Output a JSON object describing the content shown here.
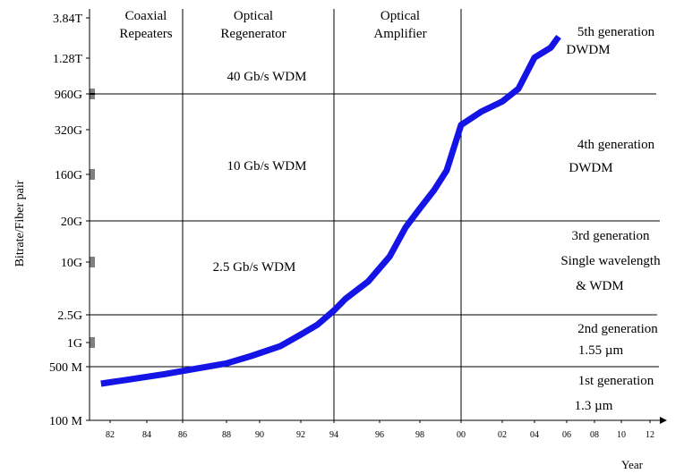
{
  "chart_data": {
    "type": "line",
    "title": "",
    "xlabel": "Year",
    "ylabel": "Bitrate/Fiber pair",
    "y_scale": "log",
    "x_ticks": [
      "82",
      "84",
      "86",
      "88",
      "90",
      "92",
      "94",
      "96",
      "98",
      "00",
      "02",
      "04",
      "06",
      "08",
      "10",
      "12"
    ],
    "y_ticks": [
      "3.84T",
      "1.28T",
      "960G",
      "320G",
      "160G",
      "20G",
      "10G",
      "2.5G",
      "1G",
      "500 M",
      "100 M"
    ],
    "eras": [
      "Coaxial\nRepeaters",
      "Optical\nRegenerator",
      "Optical\nAmplifier"
    ],
    "wdm_bands": [
      "40 Gb/s WDM",
      "10 Gb/s WDM",
      "2.5 Gb/s WDM"
    ],
    "generations": [
      "5th generation\nDWDM",
      "4th generation\nDWDM",
      "3rd generation\nSingle wavelength\n&  WDM",
      "2nd generation\n1.55 µm",
      "1st generation\n1.3 µm"
    ],
    "series": [
      {
        "color": "#1414e6",
        "points": [
          [
            "1981.5",
            "0.3G"
          ],
          [
            "1983",
            "0.34G"
          ],
          [
            "1985",
            "0.4G"
          ],
          [
            "1986",
            "0.44G"
          ],
          [
            "1988",
            "0.55G"
          ],
          [
            "1989.5",
            "0.68G"
          ],
          [
            "1991",
            "0.9G"
          ],
          [
            "1992",
            "1.3G"
          ],
          [
            "1993",
            "1.8G"
          ],
          [
            "1994",
            "2.8G"
          ],
          [
            "1994.5",
            "3.8G"
          ],
          [
            "1995.5",
            "6G"
          ],
          [
            "1996.5",
            "11G"
          ],
          [
            "1997.3",
            "18G"
          ],
          [
            "1998",
            "35G"
          ],
          [
            "1998.7",
            "80G"
          ],
          [
            "1999.3",
            "170G"
          ],
          [
            "2000",
            "370G"
          ],
          [
            "2001",
            "560G"
          ],
          [
            "2002",
            "760G"
          ],
          [
            "2003",
            "1.0T"
          ],
          [
            "2004",
            "1.3T"
          ],
          [
            "2005",
            "1.7T"
          ],
          [
            "2005.5",
            "2.3T"
          ]
        ]
      }
    ]
  }
}
